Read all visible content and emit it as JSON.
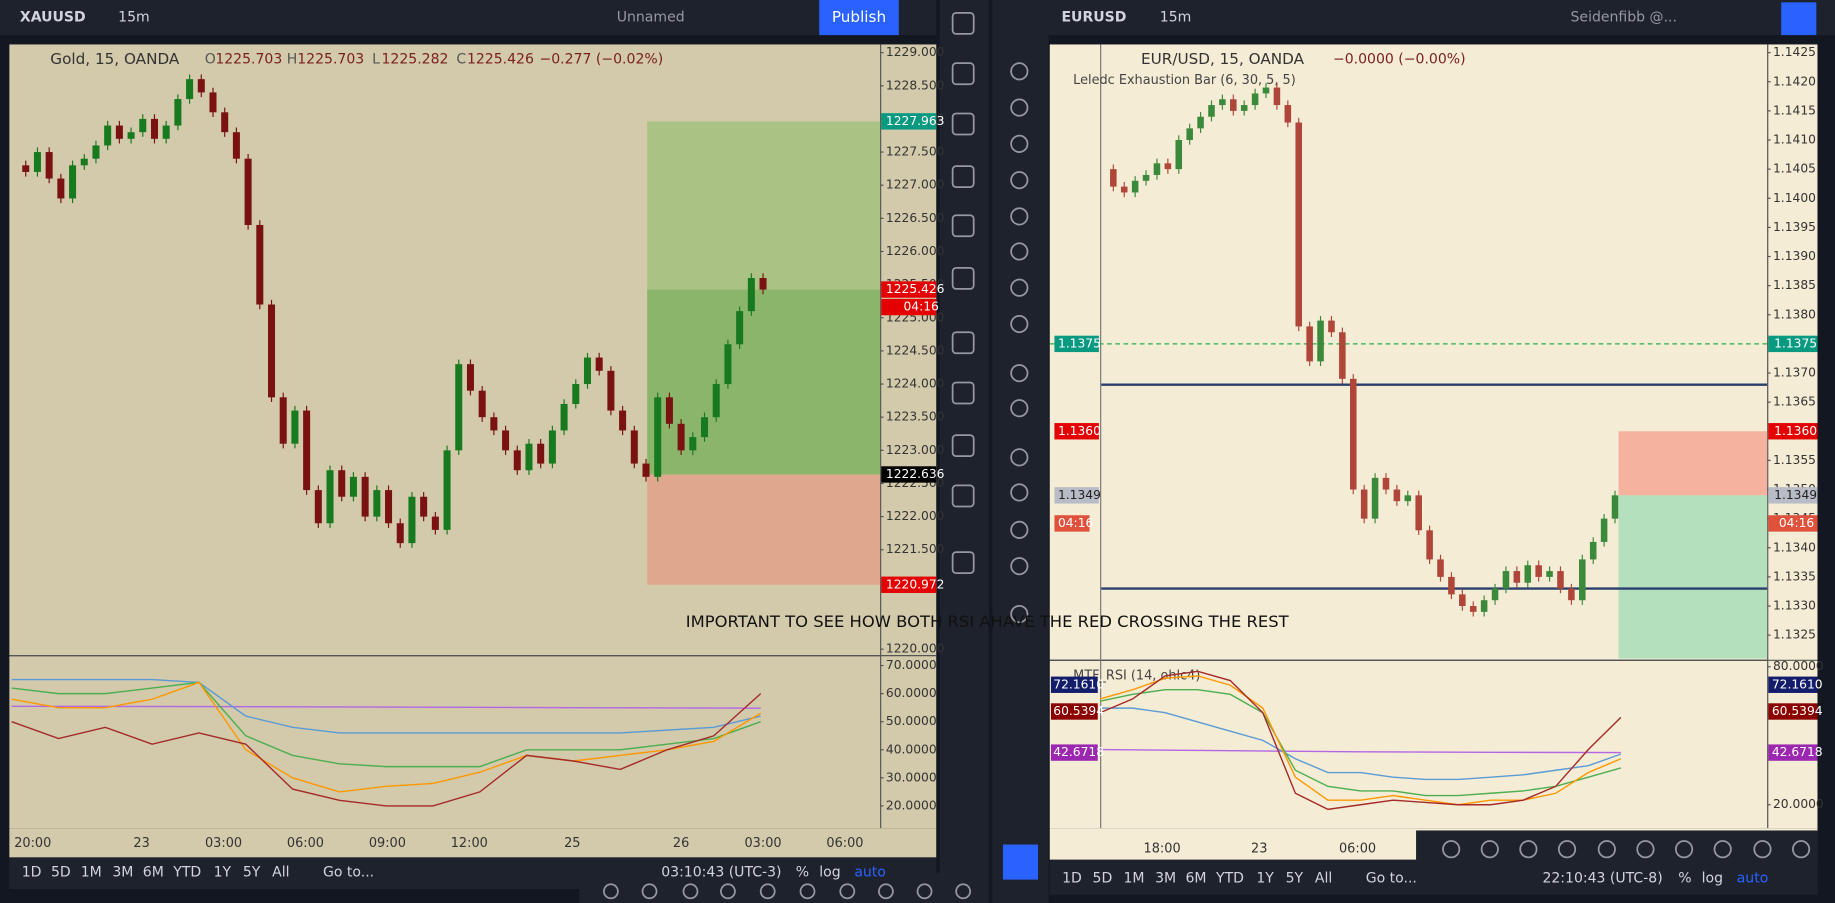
{
  "left": {
    "toolbar": {
      "symbol": "XAUUSD",
      "interval": "15m",
      "layout": "Unnamed",
      "publish": "Publish"
    },
    "legend": {
      "title": "Gold, 15, OANDA",
      "open_label": "O",
      "open": "1225.703",
      "high_label": "H",
      "high": "1225.703",
      "low_label": "L",
      "low": "1225.282",
      "close_label": "C",
      "close": "1225.426",
      "change": "−0.277 (−0.02%)"
    },
    "price_axis": [
      {
        "value": 1229,
        "label": "1229.000"
      },
      {
        "value": 1228.5,
        "label": "1228.500"
      },
      {
        "value": 1228,
        "label": "1228.000"
      },
      {
        "value": 1227.5,
        "label": "1227.500"
      },
      {
        "value": 1227,
        "label": "1227.000"
      },
      {
        "value": 1226.5,
        "label": "1226.500"
      },
      {
        "value": 1226,
        "label": "1226.000"
      },
      {
        "value": 1225.5,
        "label": "1225.500"
      },
      {
        "value": 1225,
        "label": "1225.000"
      },
      {
        "value": 1224.5,
        "label": "1224.500"
      },
      {
        "value": 1224,
        "label": "1224.000"
      },
      {
        "value": 1223.5,
        "label": "1223.500"
      },
      {
        "value": 1223,
        "label": "1223.000"
      },
      {
        "value": 1222.5,
        "label": "1222.500"
      },
      {
        "value": 1222,
        "label": "1222.000"
      },
      {
        "value": 1221.5,
        "label": "1221.500"
      },
      {
        "value": 1220,
        "label": "1220.000"
      }
    ],
    "price_tags": [
      {
        "value": 1227.963,
        "label": "1227.963",
        "color": "#089981"
      },
      {
        "value": 1225.426,
        "label": "1225.426",
        "color": "#e50000"
      },
      {
        "value": 1222.636,
        "label": "1222.636",
        "color": "#000000"
      },
      {
        "value": 1220.972,
        "label": "1220.972",
        "color": "#e50000"
      }
    ],
    "countdown": "04:16",
    "closes": [
      1227.3,
      1227.2,
      1227.5,
      1227.1,
      1226.8,
      1227.3,
      1227.4,
      1227.6,
      1227.9,
      1227.7,
      1227.8,
      1228.0,
      1227.7,
      1227.9,
      1228.3,
      1228.6,
      1228.4,
      1228.1,
      1227.8,
      1227.4,
      1226.4,
      1225.2,
      1223.8,
      1223.1,
      1223.6,
      1222.4,
      1221.9,
      1222.7,
      1222.3,
      1222.6,
      1222.0,
      1222.4,
      1221.9,
      1221.6,
      1222.3,
      1222.0,
      1221.8,
      1223.0,
      1224.3,
      1223.9,
      1223.5,
      1223.3,
      1223.0,
      1222.7,
      1223.1,
      1222.8,
      1223.3,
      1223.7,
      1224.0,
      1224.4,
      1224.2,
      1223.6,
      1223.3,
      1222.8,
      1222.6,
      1223.8,
      1223.4,
      1223.0,
      1223.2,
      1223.5,
      1224.0,
      1224.6,
      1225.1,
      1225.6,
      1225.426
    ],
    "rsi_axis": [
      {
        "value": 70,
        "label": "70.0000"
      },
      {
        "value": 60,
        "label": "60.0000"
      },
      {
        "value": 50,
        "label": "50.0000"
      },
      {
        "value": 40,
        "label": "40.0000"
      },
      {
        "value": 30,
        "label": "30.0000"
      },
      {
        "value": 20,
        "label": "20.0000"
      }
    ],
    "rsi": [
      {
        "color": "#b366e6",
        "values": [
          55.5,
          55.4,
          55.2,
          55.0,
          54.8
        ]
      },
      {
        "color": "#5b9bd5",
        "values": [
          65,
          65,
          65,
          65,
          64,
          52,
          48,
          46,
          46,
          46,
          46,
          46,
          46,
          46,
          47,
          48,
          52
        ]
      },
      {
        "color": "#4caf50",
        "values": [
          62,
          60,
          60,
          62,
          64,
          45,
          38,
          35,
          34,
          34,
          34,
          40,
          40,
          40,
          42,
          44,
          50
        ]
      },
      {
        "color": "#ff9800",
        "values": [
          58,
          55,
          55,
          58,
          64,
          40,
          30,
          25,
          27,
          28,
          32,
          38,
          36,
          38,
          40,
          43,
          53
        ]
      },
      {
        "color": "#a52a2a",
        "values": [
          50,
          44,
          48,
          42,
          46,
          42,
          26,
          22,
          20,
          20,
          25,
          38,
          36,
          33,
          40,
          45,
          60
        ]
      }
    ],
    "time_axis": [
      "20:00",
      "23",
      "03:00",
      "06:00",
      "09:00",
      "12:00",
      "25",
      "26",
      "03:00",
      "06:00"
    ],
    "range_buttons": [
      "1D",
      "5D",
      "1M",
      "3M",
      "6M",
      "YTD",
      "1Y",
      "5Y",
      "All"
    ],
    "goto": "Go to...",
    "clock": "03:10:43 (UTC-3)",
    "percent": "%",
    "log": "log",
    "auto": "auto"
  },
  "right": {
    "toolbar": {
      "symbol": "EURUSD",
      "interval": "15m",
      "layout": "Seidenfibb @..."
    },
    "legend": {
      "title": "EUR/USD, 15, OANDA",
      "change": "−0.0000 (−0.00%)",
      "indicator": "Leledc Exhaustion Bar (6, 30, 5, 5)"
    },
    "price_axis": [
      {
        "value": 1.1425,
        "label": "1.1425"
      },
      {
        "value": 1.142,
        "label": "1.1420"
      },
      {
        "value": 1.1415,
        "label": "1.1415"
      },
      {
        "value": 1.141,
        "label": "1.1410"
      },
      {
        "value": 1.1405,
        "label": "1.1405"
      },
      {
        "value": 1.14,
        "label": "1.1400"
      },
      {
        "value": 1.1395,
        "label": "1.1395"
      },
      {
        "value": 1.139,
        "label": "1.1390"
      },
      {
        "value": 1.1385,
        "label": "1.1385"
      },
      {
        "value": 1.138,
        "label": "1.1380"
      },
      {
        "value": 1.137,
        "label": "1.1370"
      },
      {
        "value": 1.1365,
        "label": "1.1365"
      },
      {
        "value": 1.1355,
        "label": "1.1355"
      },
      {
        "value": 1.135,
        "label": "1.1350"
      },
      {
        "value": 1.1345,
        "label": "1.1345"
      },
      {
        "value": 1.134,
        "label": "1.1340"
      },
      {
        "value": 1.1335,
        "label": "1.1335"
      },
      {
        "value": 1.133,
        "label": "1.1330"
      },
      {
        "value": 1.1325,
        "label": "1.1325"
      }
    ],
    "price_tags": [
      {
        "value": 1.1375,
        "label": "1.1375",
        "color": "#089981"
      },
      {
        "value": 1.136,
        "label": "1.1360",
        "color": "#e50000"
      },
      {
        "value": 1.1349,
        "label": "1.1349",
        "color": "#b8bcc6"
      }
    ],
    "countdown": "04:16",
    "levels": [
      {
        "value": 1.1368,
        "color": "#2a3f6b"
      },
      {
        "value": 1.1333,
        "color": "#2a3f6b"
      }
    ],
    "closes": [
      1.1405,
      1.1402,
      1.1401,
      1.1403,
      1.1404,
      1.1406,
      1.1405,
      1.141,
      1.1412,
      1.1414,
      1.1416,
      1.1417,
      1.1415,
      1.1416,
      1.1418,
      1.1419,
      1.1416,
      1.1413,
      1.1378,
      1.1372,
      1.1379,
      1.1377,
      1.1369,
      1.135,
      1.1345,
      1.1352,
      1.135,
      1.1348,
      1.1349,
      1.1343,
      1.1338,
      1.1335,
      1.1332,
      1.133,
      1.1329,
      1.1331,
      1.1333,
      1.1336,
      1.1334,
      1.1337,
      1.1335,
      1.1336,
      1.1333,
      1.1331,
      1.1338,
      1.1341,
      1.1345,
      1.1349
    ],
    "rsi_title": "MTF_RSI (14, ohlc4)",
    "rsi_axis": [
      {
        "value": 80,
        "label": "80.0000"
      },
      {
        "value": 20,
        "label": "20.0000"
      }
    ],
    "rsi_tags": [
      {
        "value": 72.161,
        "label": "72.1610",
        "color": "#131d6b"
      },
      {
        "value": 60.5394,
        "label": "60.5394",
        "color": "#8b0000"
      },
      {
        "value": 42.6718,
        "label": "42.6718",
        "color": "#9c27b0"
      }
    ],
    "rsi": [
      {
        "color": "#b366e6",
        "values": [
          44,
          43.5,
          43,
          42.8,
          42.7
        ]
      },
      {
        "color": "#5b9bd5",
        "values": [
          62,
          62,
          60,
          56,
          52,
          48,
          40,
          34,
          34,
          32,
          31,
          31,
          32,
          33,
          35,
          37,
          42
        ]
      },
      {
        "color": "#4caf50",
        "values": [
          65,
          68,
          70,
          70,
          68,
          60,
          35,
          28,
          26,
          26,
          24,
          24,
          25,
          26,
          28,
          32,
          36
        ]
      },
      {
        "color": "#ff9800",
        "values": [
          66,
          70,
          75,
          76,
          72,
          62,
          32,
          22,
          22,
          24,
          22,
          20,
          22,
          22,
          25,
          34,
          40
        ]
      },
      {
        "color": "#a52a2a",
        "values": [
          60,
          66,
          76,
          78,
          74,
          60,
          25,
          18,
          20,
          22,
          21,
          20,
          20,
          22,
          28,
          44,
          58
        ]
      }
    ],
    "time_axis": [
      "18:00",
      "23",
      "06:00"
    ],
    "range_buttons": [
      "1D",
      "5D",
      "1M",
      "3M",
      "6M",
      "YTD",
      "1Y",
      "5Y",
      "All"
    ],
    "goto": "Go to...",
    "clock": "22:10:43 (UTC-8)",
    "percent": "%",
    "log": "log",
    "auto": "auto"
  },
  "annotation": "IMPORTANT TO SEE HOW BOTH RSI AHAVE THE RED CROSSING THE REST"
}
